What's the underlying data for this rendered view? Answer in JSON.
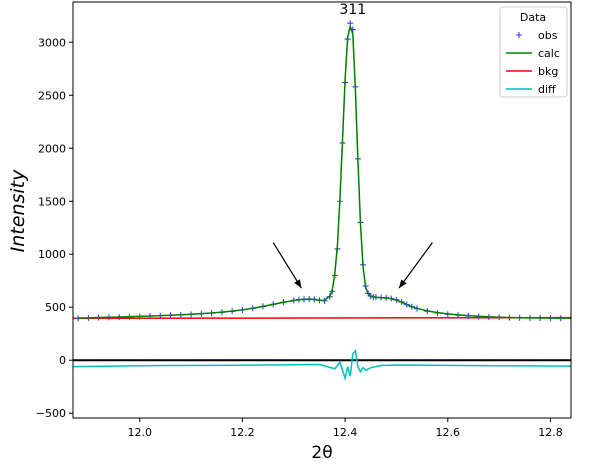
{
  "chart_data": {
    "type": "line",
    "title": "",
    "xlabel": "2θ",
    "ylabel": "Intensity",
    "xlim": [
      11.87,
      12.84
    ],
    "ylim": [
      -545,
      3380
    ],
    "x_ticks": [
      "12.0",
      "12.2",
      "12.4",
      "12.6",
      "12.8"
    ],
    "x_tick_values": [
      12.0,
      12.2,
      12.4,
      12.6,
      12.8
    ],
    "y_ticks": [
      "−500",
      "0",
      "500",
      "1000",
      "1500",
      "2000",
      "2500",
      "3000"
    ],
    "y_tick_values": [
      -500,
      0,
      500,
      1000,
      1500,
      2000,
      2500,
      3000
    ],
    "grid": false,
    "legend": {
      "title": "Data",
      "placement": "top-right",
      "entries": [
        "obs",
        "calc",
        "bkg",
        "diff"
      ]
    },
    "colors": {
      "obs": "#3b3bff",
      "calc": "#008000",
      "bkg": "#ff0000",
      "diff": "#00bfbf",
      "zero_line": "#000000"
    },
    "annotations": [
      {
        "text": "311",
        "x": 12.415,
        "y": 3250
      }
    ],
    "arrows": [
      {
        "from": [
          12.26,
          1110
        ],
        "to": [
          12.315,
          680
        ]
      },
      {
        "from": [
          12.57,
          1110
        ],
        "to": [
          12.505,
          680
        ]
      }
    ],
    "zero_line": 0,
    "series": [
      {
        "name": "obs",
        "style": "marker",
        "x": [
          11.88,
          11.9,
          11.92,
          11.94,
          11.96,
          11.98,
          12.0,
          12.02,
          12.04,
          12.06,
          12.08,
          12.1,
          12.12,
          12.14,
          12.16,
          12.18,
          12.2,
          12.22,
          12.24,
          12.26,
          12.28,
          12.3,
          12.31,
          12.32,
          12.33,
          12.34,
          12.35,
          12.36,
          12.37,
          12.375,
          12.38,
          12.385,
          12.39,
          12.395,
          12.4,
          12.405,
          12.41,
          12.415,
          12.42,
          12.425,
          12.43,
          12.435,
          12.44,
          12.445,
          12.45,
          12.455,
          12.46,
          12.47,
          12.48,
          12.49,
          12.5,
          12.51,
          12.52,
          12.53,
          12.54,
          12.56,
          12.58,
          12.6,
          12.62,
          12.64,
          12.66,
          12.68,
          12.7,
          12.72,
          12.74,
          12.76,
          12.78,
          12.8,
          12.82,
          12.84
        ],
        "y": [
          395,
          398,
          402,
          404,
          407,
          410,
          413,
          417,
          420,
          424,
          428,
          433,
          438,
          445,
          452,
          462,
          474,
          490,
          508,
          528,
          548,
          565,
          572,
          576,
          578,
          575,
          565,
          560,
          600,
          650,
          800,
          1050,
          1500,
          2050,
          2620,
          3030,
          3180,
          3120,
          2580,
          1900,
          1300,
          900,
          700,
          630,
          605,
          598,
          595,
          592,
          590,
          583,
          570,
          550,
          525,
          505,
          488,
          463,
          446,
          434,
          425,
          418,
          413,
          408,
          405,
          402,
          400,
          399,
          398,
          397,
          396,
          396
        ]
      },
      {
        "name": "calc",
        "style": "line",
        "x": [
          11.88,
          11.9,
          11.92,
          11.94,
          11.96,
          11.98,
          12.0,
          12.02,
          12.04,
          12.06,
          12.08,
          12.1,
          12.12,
          12.14,
          12.16,
          12.18,
          12.2,
          12.22,
          12.24,
          12.26,
          12.28,
          12.3,
          12.31,
          12.32,
          12.33,
          12.34,
          12.35,
          12.36,
          12.37,
          12.375,
          12.38,
          12.385,
          12.39,
          12.395,
          12.4,
          12.405,
          12.41,
          12.415,
          12.42,
          12.425,
          12.43,
          12.435,
          12.44,
          12.445,
          12.45,
          12.455,
          12.46,
          12.47,
          12.48,
          12.49,
          12.5,
          12.51,
          12.52,
          12.53,
          12.54,
          12.56,
          12.58,
          12.6,
          12.62,
          12.64,
          12.66,
          12.68,
          12.7,
          12.72,
          12.74,
          12.76,
          12.78,
          12.8,
          12.82,
          12.84
        ],
        "y": [
          398,
          400,
          403,
          405,
          408,
          411,
          414,
          417,
          421,
          425,
          429,
          434,
          440,
          446,
          454,
          463,
          475,
          490,
          508,
          527,
          547,
          563,
          570,
          574,
          575,
          573,
          566,
          565,
          605,
          660,
          820,
          1080,
          1530,
          2080,
          2650,
          3050,
          3150,
          3080,
          2560,
          1880,
          1280,
          880,
          690,
          625,
          603,
          596,
          593,
          590,
          587,
          580,
          567,
          548,
          525,
          506,
          490,
          466,
          449,
          437,
          428,
          421,
          415,
          410,
          406,
          403,
          401,
          400,
          399,
          398,
          397,
          397
        ]
      },
      {
        "name": "bkg",
        "style": "line",
        "x": [
          11.87,
          12.84
        ],
        "y": [
          395,
          402
        ]
      },
      {
        "name": "diff",
        "style": "line",
        "x": [
          11.87,
          11.95,
          12.05,
          12.15,
          12.25,
          12.3,
          12.35,
          12.38,
          12.39,
          12.4,
          12.405,
          12.41,
          12.415,
          12.42,
          12.425,
          12.43,
          12.435,
          12.44,
          12.45,
          12.47,
          12.5,
          12.6,
          12.7,
          12.84
        ],
        "y": [
          -60,
          -55,
          -50,
          -48,
          -45,
          -42,
          -40,
          -80,
          -20,
          -170,
          -60,
          -150,
          60,
          90,
          -60,
          -110,
          -70,
          -95,
          -70,
          -50,
          -45,
          -48,
          -52,
          -55
        ]
      }
    ]
  }
}
